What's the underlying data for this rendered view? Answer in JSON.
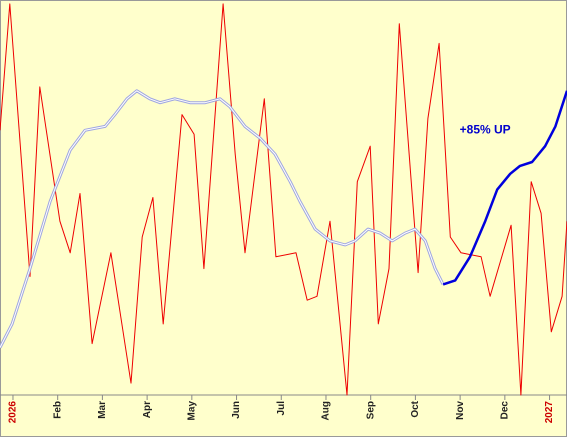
{
  "chart_data": {
    "type": "line",
    "annotations": [
      {
        "text": "+85% UP",
        "x": 10.56,
        "y": 67
      }
    ],
    "xlim": [
      -0.29,
      12.39
    ],
    "ylim": [
      0,
      100
    ],
    "xticks": [
      {
        "value": 0,
        "label": "2026",
        "color": "#cc0000"
      },
      {
        "value": 1,
        "label": "Feb"
      },
      {
        "value": 2,
        "label": "Mar"
      },
      {
        "value": 3,
        "label": "Apr"
      },
      {
        "value": 4,
        "label": "May"
      },
      {
        "value": 5,
        "label": "Jun"
      },
      {
        "value": 6,
        "label": "Jul"
      },
      {
        "value": 7,
        "label": "Aug"
      },
      {
        "value": 8,
        "label": "Sep"
      },
      {
        "value": 9,
        "label": "Oct"
      },
      {
        "value": 10,
        "label": "Nov"
      },
      {
        "value": 11,
        "label": "Dec"
      },
      {
        "value": 12,
        "label": "2027",
        "color": "#cc0000"
      }
    ],
    "series": [
      {
        "color": "#ee0000",
        "width": 1,
        "x": [
          -0.29,
          -0.07,
          0.38,
          0.6,
          1.05,
          1.28,
          1.5,
          1.77,
          2.19,
          2.64,
          2.89,
          3.13,
          3.36,
          3.78,
          4.05,
          4.27,
          4.7,
          4.97,
          5.19,
          5.62,
          5.88,
          6.33,
          6.58,
          6.8,
          7.09,
          7.47,
          7.7,
          7.99,
          8.17,
          8.41,
          8.64,
          9.06,
          9.28,
          9.53,
          9.78,
          10.02,
          10.47,
          10.67,
          11.14,
          11.36,
          11.59,
          11.81,
          12.04,
          12.28,
          12.39
        ],
        "values": [
          67,
          99,
          30,
          78,
          44,
          36,
          51,
          13,
          36,
          3,
          40,
          50,
          18,
          71,
          66,
          32,
          99,
          61,
          36,
          75,
          35,
          36,
          24,
          25,
          44,
          0,
          54,
          63,
          18,
          32,
          94,
          31,
          70,
          89,
          40,
          36,
          35,
          25,
          43,
          0,
          54,
          46,
          16,
          25,
          44
        ]
      },
      {
        "color": "#9fa6e0",
        "width": 3,
        "double": true,
        "x": [
          -0.29,
          -0.02,
          0.38,
          0.83,
          1.28,
          1.61,
          2.06,
          2.28,
          2.55,
          2.77,
          3.06,
          3.29,
          3.62,
          3.96,
          4.3,
          4.63,
          4.85,
          5.19,
          5.53,
          5.86,
          6.2,
          6.42,
          6.76,
          7.09,
          7.43,
          7.65,
          7.94,
          8.21,
          8.48,
          8.77,
          8.99,
          9.22,
          9.44,
          9.62
        ],
        "values": [
          12,
          18,
          32,
          49,
          62,
          67,
          68,
          71,
          75,
          77,
          75,
          74,
          75,
          74,
          74,
          75,
          73,
          68,
          65,
          61,
          54,
          49,
          42,
          39,
          38,
          39,
          42,
          41,
          39,
          41,
          42,
          39,
          32,
          28
        ]
      },
      {
        "color": "#0000dd",
        "width": 2.5,
        "x": [
          9.62,
          9.89,
          10.22,
          10.56,
          10.83,
          11.12,
          11.34,
          11.61,
          11.9,
          12.13,
          12.39
        ],
        "values": [
          28,
          29,
          35,
          44,
          52,
          56,
          58,
          59,
          63,
          68,
          77
        ]
      }
    ]
  }
}
